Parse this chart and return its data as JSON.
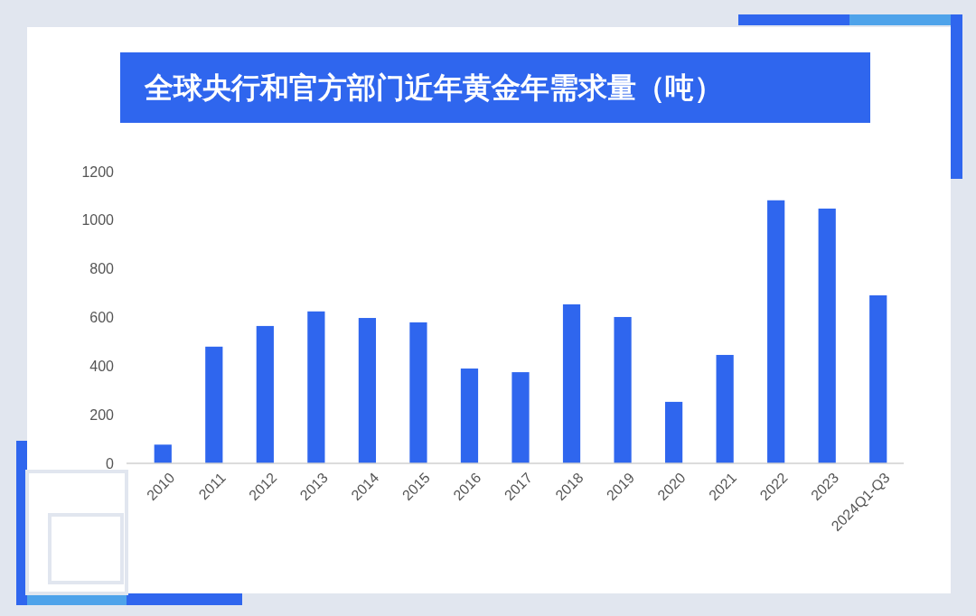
{
  "chart_data": {
    "type": "bar",
    "title": "全球央行和官方部门近年黄金年需求量（吨）",
    "categories": [
      "2010",
      "2011",
      "2012",
      "2013",
      "2014",
      "2015",
      "2016",
      "2017",
      "2018",
      "2019",
      "2020",
      "2021",
      "2022",
      "2023",
      "2024Q1-Q3"
    ],
    "values": [
      77,
      480,
      565,
      625,
      598,
      580,
      390,
      375,
      654,
      602,
      253,
      446,
      1082,
      1048,
      691
    ],
    "color": "#2f66ee",
    "ylim": [
      0,
      1200
    ],
    "yticks": [
      0,
      200,
      400,
      600,
      800,
      1000,
      1200
    ],
    "grid": false
  }
}
